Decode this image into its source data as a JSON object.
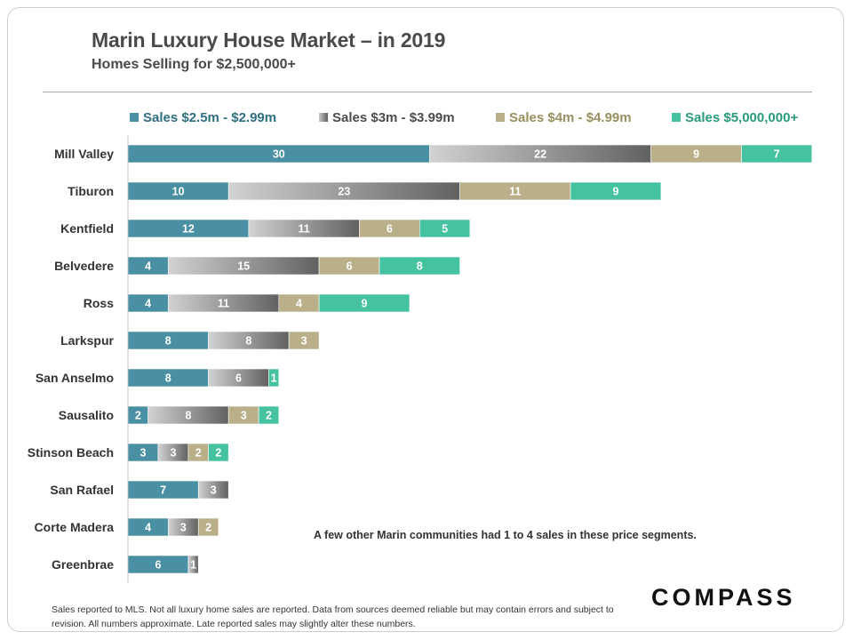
{
  "header": {
    "title": "Marin Luxury House Market – in 2019",
    "subtitle": "Homes Selling for $2,500,000+"
  },
  "legend": [
    {
      "label": "Sales $2.5m - $2.99m",
      "color": "#4a90a4",
      "text_color": "#2f6f82"
    },
    {
      "label": "Sales $3m - $3.99m",
      "color": "#8c8c8c",
      "text_color": "#4d4d4d"
    },
    {
      "label": "Sales $4m - $4.99m",
      "color": "#b9b08a",
      "text_color": "#9a8f5f"
    },
    {
      "label": "Sales $5,000,000+",
      "color": "#45c3a0",
      "text_color": "#2a9a7e"
    }
  ],
  "chart_data": {
    "type": "bar",
    "orientation": "horizontal",
    "stacked": true,
    "title": "Marin Luxury House Market – in 2019",
    "subtitle": "Homes Selling for $2,500,000+",
    "xlabel": "",
    "ylabel": "",
    "xlim": [
      0,
      68
    ],
    "grid": false,
    "legend_position": "top",
    "categories": [
      "Mill Valley",
      "Tiburon",
      "Kentfield",
      "Belvedere",
      "Ross",
      "Larkspur",
      "San Anselmo",
      "Sausalito",
      "Stinson Beach",
      "San Rafael",
      "Corte Madera",
      "Greenbrae"
    ],
    "series": [
      {
        "name": "Sales $2.5m - $2.99m",
        "color": "#4a90a4",
        "values": [
          30,
          10,
          12,
          4,
          4,
          8,
          8,
          2,
          3,
          7,
          4,
          6
        ]
      },
      {
        "name": "Sales $3m - $3.99m",
        "color": "#8c8c8c",
        "values": [
          22,
          23,
          11,
          15,
          11,
          8,
          6,
          8,
          3,
          3,
          3,
          1
        ]
      },
      {
        "name": "Sales $4m - $4.99m",
        "color": "#b9b08a",
        "values": [
          9,
          11,
          6,
          6,
          4,
          3,
          0,
          3,
          2,
          0,
          2,
          0
        ]
      },
      {
        "name": "Sales $5,000,000+",
        "color": "#45c3a0",
        "values": [
          7,
          9,
          5,
          8,
          9,
          0,
          1,
          2,
          2,
          0,
          0,
          0
        ]
      }
    ]
  },
  "annotation": "A few other Marin communities had 1 to 4 sales in these price segments.",
  "footnote": "Sales reported to MLS. Not all luxury home sales are reported. Data from sources deemed reliable but may contain errors and subject to revision. All numbers approximate. Late reported sales may slightly alter these numbers.",
  "logo_text": "COMPASS"
}
